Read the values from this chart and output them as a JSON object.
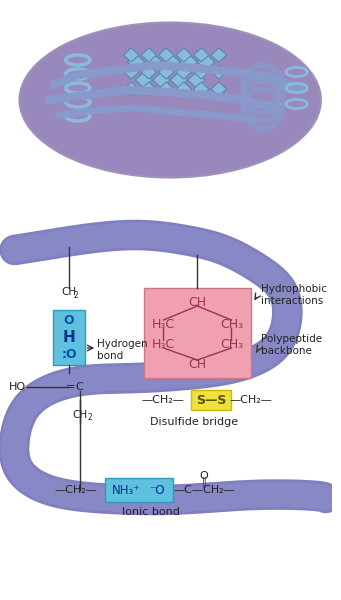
{
  "bg_color": "#ffffff",
  "protein_color": "#8080c0",
  "protein_color2": "#9090cc",
  "mitochondria_color": "#9988bb",
  "helix_color": "#88bbdd",
  "pink_box_color": "#f0a0b0",
  "yellow_box_color": "#f0e040",
  "blue_box_color": "#60c0e0",
  "text_color": "#000000",
  "text_color_dark": "#333333",
  "bond_colors": {
    "hydrogen": "#60c0e0",
    "disulfide": "#f0e040",
    "ionic": "#60c0e0"
  },
  "labels": {
    "hydrophobic": "Hydrophobic\ninteractions",
    "polypeptide": "Polypeptide\nbackbone",
    "hydrogen": "Hydrogen\nbond",
    "disulfide": "Disulfide bridge",
    "ionic": "Ionic bond"
  }
}
